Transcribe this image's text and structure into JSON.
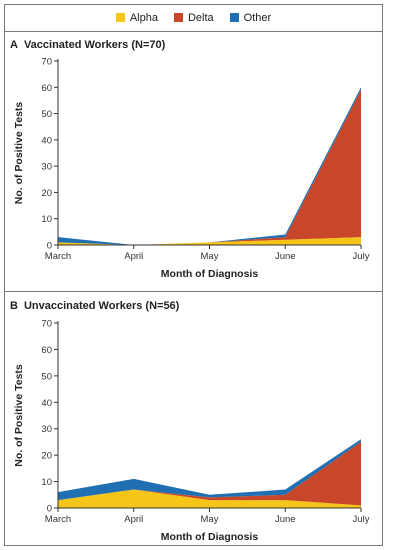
{
  "legend": {
    "items": [
      {
        "label": "Alpha",
        "color": "#f5c518"
      },
      {
        "label": "Delta",
        "color": "#c8472b"
      },
      {
        "label": "Other",
        "color": "#1f6fb2"
      }
    ]
  },
  "chart_data": [
    {
      "type": "area",
      "stacked": true,
      "panel_letter": "A",
      "title": "Vaccinated Workers (N=70)",
      "xlabel": "Month of Diagnosis",
      "ylabel": "No. of Positive Tests",
      "categories": [
        "March",
        "April",
        "May",
        "June",
        "July"
      ],
      "ylim": [
        0,
        70
      ],
      "yticks": [
        0,
        10,
        20,
        30,
        40,
        50,
        60,
        70
      ],
      "series": [
        {
          "name": "Alpha",
          "color": "#f5c518",
          "values": [
            1,
            0,
            1,
            2,
            3
          ]
        },
        {
          "name": "Delta",
          "color": "#c8472b",
          "values": [
            0,
            0,
            0,
            1,
            56
          ]
        },
        {
          "name": "Other",
          "color": "#1f6fb2",
          "values": [
            2,
            0,
            0,
            1,
            1
          ]
        }
      ]
    },
    {
      "type": "area",
      "stacked": true,
      "panel_letter": "B",
      "title": "Unvaccinated Workers (N=56)",
      "xlabel": "Month of Diagnosis",
      "ylabel": "No. of Positive Tests",
      "categories": [
        "March",
        "April",
        "May",
        "June",
        "July"
      ],
      "ylim": [
        0,
        70
      ],
      "yticks": [
        0,
        10,
        20,
        30,
        40,
        50,
        60,
        70
      ],
      "series": [
        {
          "name": "Alpha",
          "color": "#f5c518",
          "values": [
            3,
            7,
            3,
            3,
            1
          ]
        },
        {
          "name": "Delta",
          "color": "#c8472b",
          "values": [
            0,
            0,
            1,
            2,
            24
          ]
        },
        {
          "name": "Other",
          "color": "#1f6fb2",
          "values": [
            3,
            4,
            1,
            2,
            1
          ]
        }
      ]
    }
  ]
}
